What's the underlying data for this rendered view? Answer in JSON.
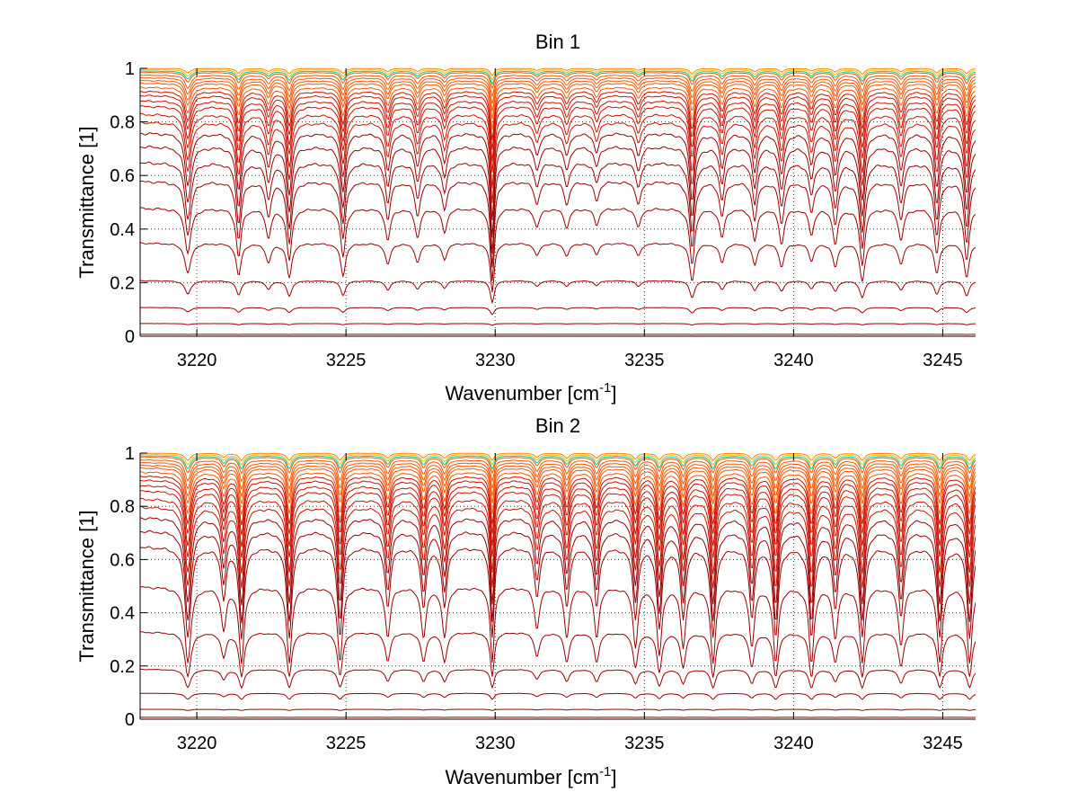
{
  "chart_data": [
    {
      "type": "line",
      "title": "Bin 1",
      "xlabel": "Wavenumber [cm",
      "xlabel_sup": "-1",
      "xlabel_suffix": "]",
      "ylabel": "Transmittance [1]",
      "xlim": [
        3218.1,
        3246.1
      ],
      "ylim": [
        0,
        1
      ],
      "xticks": [
        3220,
        3225,
        3230,
        3235,
        3240,
        3245
      ],
      "yticks": [
        0,
        0.2,
        0.4,
        0.6,
        0.8,
        1
      ],
      "ytick_labels": [
        "0",
        "0.2",
        "0.4",
        "0.6",
        "0.8",
        "1"
      ],
      "grid": true,
      "legend": "none",
      "levels": [
        1.0,
        0.995,
        0.99,
        0.985,
        0.975,
        0.965,
        0.955,
        0.945,
        0.93,
        0.915,
        0.9,
        0.88,
        0.86,
        0.83,
        0.8,
        0.76,
        0.71,
        0.65,
        0.58,
        0.48,
        0.35,
        0.21,
        0.11,
        0.05,
        0.01
      ],
      "lines": [
        {
          "center": 3219.7,
          "strength": 0.28,
          "width": 0.12
        },
        {
          "center": 3221.4,
          "strength": 0.3,
          "width": 0.1
        },
        {
          "center": 3222.4,
          "strength": 0.18,
          "width": 0.1
        },
        {
          "center": 3223.1,
          "strength": 0.32,
          "width": 0.1
        },
        {
          "center": 3224.9,
          "strength": 0.3,
          "width": 0.1
        },
        {
          "center": 3226.4,
          "strength": 0.2,
          "width": 0.1
        },
        {
          "center": 3227.4,
          "strength": 0.18,
          "width": 0.1
        },
        {
          "center": 3228.3,
          "strength": 0.15,
          "width": 0.1
        },
        {
          "center": 3229.9,
          "strength": 0.45,
          "width": 0.08
        },
        {
          "center": 3231.4,
          "strength": 0.12,
          "width": 0.1
        },
        {
          "center": 3232.4,
          "strength": 0.12,
          "width": 0.1
        },
        {
          "center": 3233.4,
          "strength": 0.1,
          "width": 0.1
        },
        {
          "center": 3234.8,
          "strength": 0.12,
          "width": 0.1
        },
        {
          "center": 3236.6,
          "strength": 0.35,
          "width": 0.1
        },
        {
          "center": 3237.6,
          "strength": 0.18,
          "width": 0.1
        },
        {
          "center": 3238.7,
          "strength": 0.2,
          "width": 0.1
        },
        {
          "center": 3239.6,
          "strength": 0.22,
          "width": 0.1
        },
        {
          "center": 3240.6,
          "strength": 0.16,
          "width": 0.1
        },
        {
          "center": 3241.4,
          "strength": 0.22,
          "width": 0.1
        },
        {
          "center": 3242.3,
          "strength": 0.35,
          "width": 0.1
        },
        {
          "center": 3243.6,
          "strength": 0.2,
          "width": 0.1
        },
        {
          "center": 3244.8,
          "strength": 0.28,
          "width": 0.1
        },
        {
          "center": 3245.8,
          "strength": 0.32,
          "width": 0.1
        }
      ]
    },
    {
      "type": "line",
      "title": "Bin 2",
      "xlabel": "Wavenumber [cm",
      "xlabel_sup": "-1",
      "xlabel_suffix": "]",
      "ylabel": "Transmittance [1]",
      "xlim": [
        3218.1,
        3246.1
      ],
      "ylim": [
        0,
        1
      ],
      "xticks": [
        3220,
        3225,
        3230,
        3235,
        3240,
        3245
      ],
      "yticks": [
        0,
        0.2,
        0.4,
        0.6,
        0.8,
        1
      ],
      "ytick_labels": [
        "0",
        "0.2",
        "0.4",
        "0.6",
        "0.8",
        "1"
      ],
      "grid": true,
      "legend": "none",
      "levels": [
        1.0,
        0.995,
        0.99,
        0.985,
        0.975,
        0.965,
        0.955,
        0.945,
        0.93,
        0.915,
        0.9,
        0.88,
        0.86,
        0.83,
        0.8,
        0.76,
        0.71,
        0.65,
        0.5,
        0.33,
        0.19,
        0.1,
        0.04,
        0.01
      ],
      "lines": [
        {
          "center": 3219.7,
          "strength": 0.45,
          "width": 0.12
        },
        {
          "center": 3220.9,
          "strength": 0.25,
          "width": 0.1
        },
        {
          "center": 3221.5,
          "strength": 0.45,
          "width": 0.1
        },
        {
          "center": 3223.1,
          "strength": 0.45,
          "width": 0.1
        },
        {
          "center": 3224.8,
          "strength": 0.45,
          "width": 0.1
        },
        {
          "center": 3226.4,
          "strength": 0.3,
          "width": 0.1
        },
        {
          "center": 3227.6,
          "strength": 0.3,
          "width": 0.1
        },
        {
          "center": 3228.3,
          "strength": 0.3,
          "width": 0.1
        },
        {
          "center": 3229.9,
          "strength": 0.45,
          "width": 0.08
        },
        {
          "center": 3231.4,
          "strength": 0.25,
          "width": 0.1
        },
        {
          "center": 3232.4,
          "strength": 0.3,
          "width": 0.1
        },
        {
          "center": 3233.4,
          "strength": 0.3,
          "width": 0.1
        },
        {
          "center": 3234.7,
          "strength": 0.35,
          "width": 0.1
        },
        {
          "center": 3235.5,
          "strength": 0.4,
          "width": 0.1
        },
        {
          "center": 3236.3,
          "strength": 0.35,
          "width": 0.1
        },
        {
          "center": 3237.3,
          "strength": 0.45,
          "width": 0.1
        },
        {
          "center": 3238.6,
          "strength": 0.35,
          "width": 0.1
        },
        {
          "center": 3239.4,
          "strength": 0.45,
          "width": 0.1
        },
        {
          "center": 3240.6,
          "strength": 0.45,
          "width": 0.1
        },
        {
          "center": 3241.4,
          "strength": 0.3,
          "width": 0.1
        },
        {
          "center": 3242.3,
          "strength": 0.45,
          "width": 0.1
        },
        {
          "center": 3243.6,
          "strength": 0.35,
          "width": 0.1
        },
        {
          "center": 3244.9,
          "strength": 0.45,
          "width": 0.1
        },
        {
          "center": 3245.9,
          "strength": 0.45,
          "width": 0.1
        }
      ]
    }
  ],
  "colors": {
    "lines_dark": "#990000",
    "lines_mid": "#cc1100",
    "lines_light": "#ff5500",
    "lines_top": [
      "#ff8800",
      "#ffbb00",
      "#00ccaa",
      "#ff3300"
    ]
  }
}
